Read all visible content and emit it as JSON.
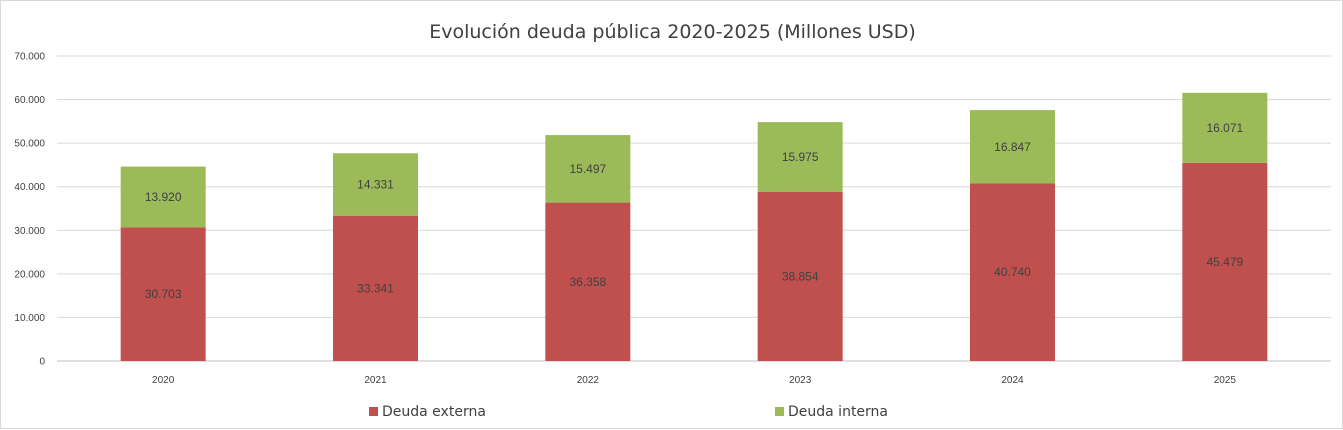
{
  "chart_data": {
    "type": "bar",
    "stacked": true,
    "title": "Evolución deuda pública 2020-2025 (Millones USD)",
    "xlabel": "",
    "ylabel": "",
    "categories": [
      "2020",
      "2021",
      "2022",
      "2023",
      "2024",
      "2025"
    ],
    "series": [
      {
        "name": "Deuda externa",
        "color": "#c0504d",
        "values": [
          30703,
          33341,
          36358,
          38854,
          40740,
          45479
        ],
        "labels": [
          "30.703",
          "33.341",
          "36.358",
          "38.854",
          "40.740",
          "45.479"
        ]
      },
      {
        "name": "Deuda interna",
        "color": "#9bbb59",
        "values": [
          13920,
          14331,
          15497,
          15975,
          16847,
          16071
        ],
        "labels": [
          "13.920",
          "14.331",
          "15.497",
          "15.975",
          "16.847",
          "16.071"
        ]
      }
    ],
    "ylim": [
      0,
      70000
    ],
    "yticks": [
      0,
      10000,
      20000,
      30000,
      40000,
      50000,
      60000,
      70000
    ],
    "ytick_labels": [
      "0",
      "10.000",
      "20.000",
      "30.000",
      "40.000",
      "50.000",
      "60.000",
      "70.000"
    ],
    "grid": true,
    "legend_position": "bottom"
  }
}
